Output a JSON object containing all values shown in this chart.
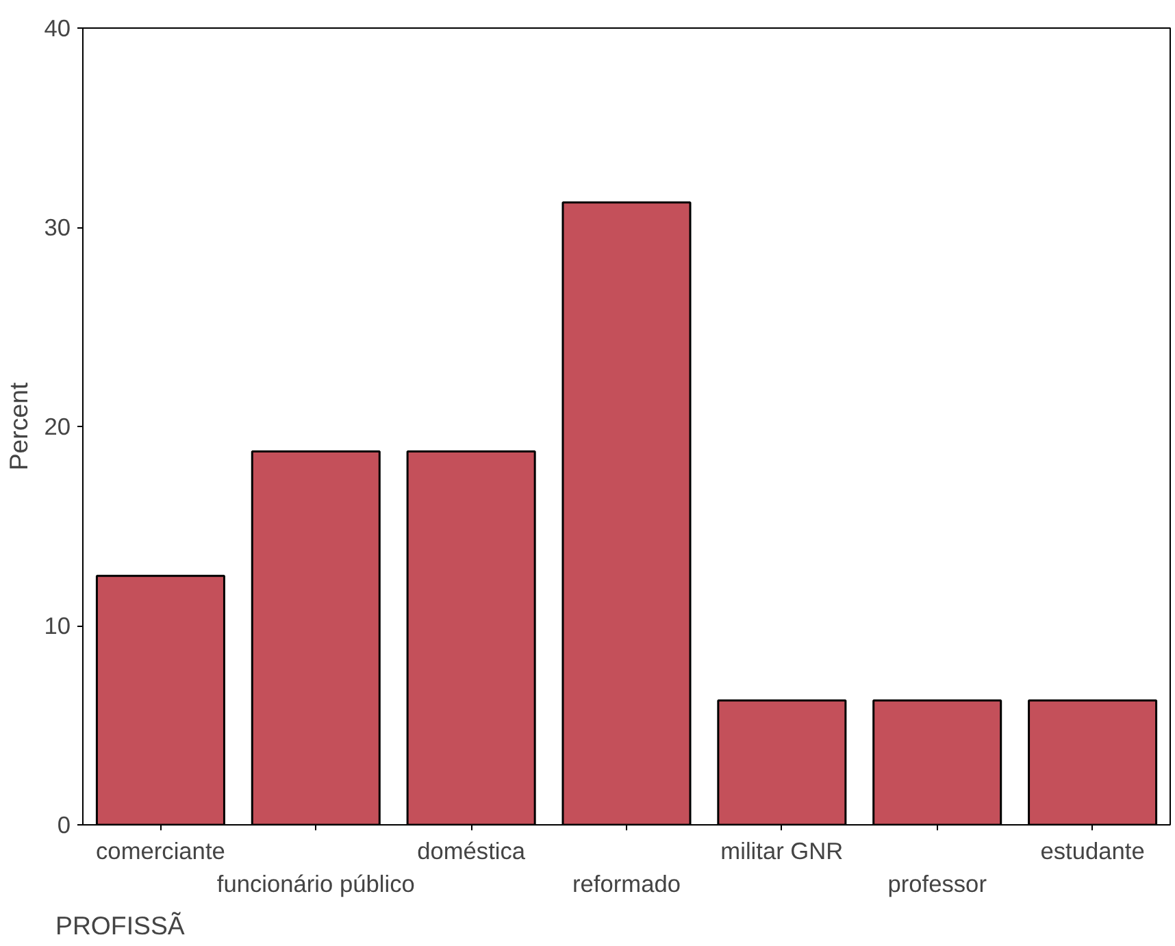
{
  "chart_data": {
    "type": "bar",
    "xlabel": "PROFISSÃ",
    "ylabel": "Percent",
    "categories": [
      "comerciante",
      "funcionário público",
      "doméstica",
      "reformado",
      "militar GNR",
      "professor",
      "estudante"
    ],
    "values": [
      12.5,
      18.75,
      18.75,
      31.25,
      6.25,
      6.25,
      6.25
    ],
    "color": "#c4505a",
    "ylim": [
      0,
      40
    ],
    "yticks": [
      0,
      10,
      20,
      30,
      40
    ],
    "grid": false
  }
}
